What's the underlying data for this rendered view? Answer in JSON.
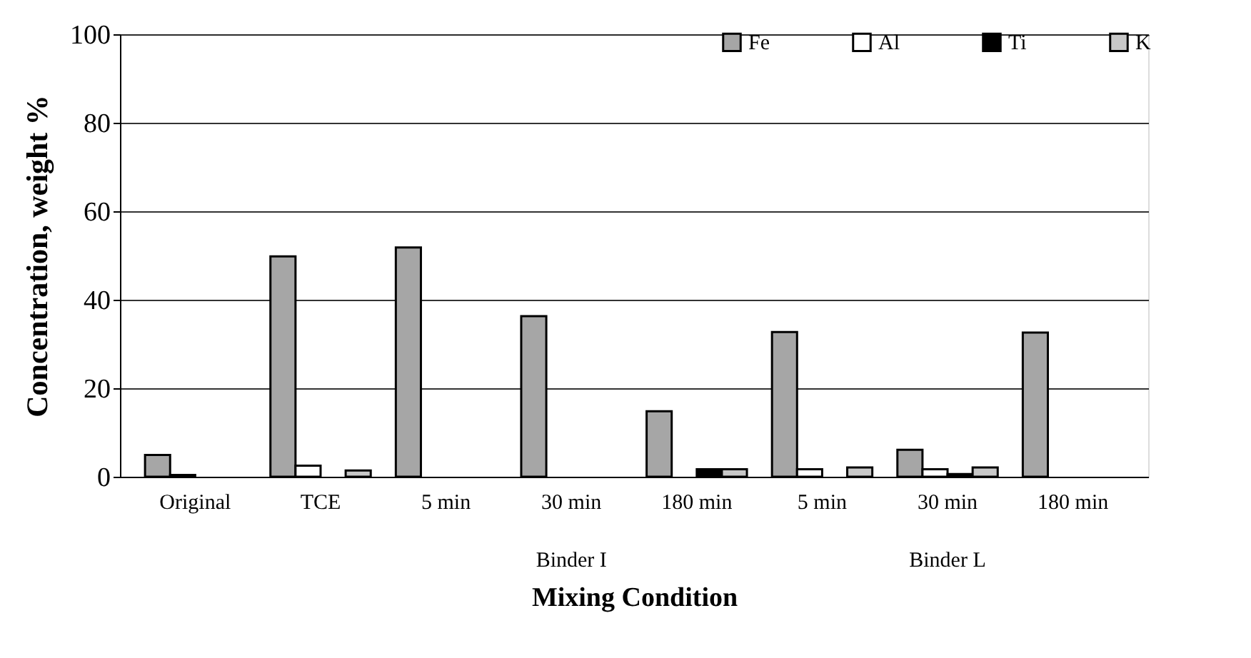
{
  "chart_data": {
    "type": "bar",
    "xlabel": "Mixing Condition",
    "ylabel": "Concentration, weight %",
    "categories": [
      "Original",
      "TCE",
      "5 min",
      "30 min",
      "180 min",
      "5 min",
      "30 min",
      "180 min"
    ],
    "series": [
      {
        "name": "Fe",
        "color": "#a6a6a6",
        "values": [
          4.9,
          49.8,
          51.8,
          36.3,
          14.8,
          32.7,
          6.1,
          32.6
        ]
      },
      {
        "name": "Al",
        "color": "#ffffff",
        "values": [
          0.4,
          2.5,
          null,
          null,
          null,
          1.7,
          1.7,
          null
        ]
      },
      {
        "name": "Ti",
        "color": "#000000",
        "values": [
          null,
          null,
          null,
          null,
          1.7,
          null,
          0.6,
          null
        ]
      },
      {
        "name": "K",
        "color": "#c8c8c8",
        "values": [
          null,
          1.4,
          null,
          null,
          1.7,
          2.1,
          2.1,
          null
        ]
      }
    ],
    "ylim": [
      0,
      100
    ],
    "yticks": [
      0,
      20,
      40,
      60,
      80,
      100
    ],
    "grid": "y",
    "legend": "top right",
    "annotations": [
      "Binder I",
      "Binder L"
    ]
  }
}
